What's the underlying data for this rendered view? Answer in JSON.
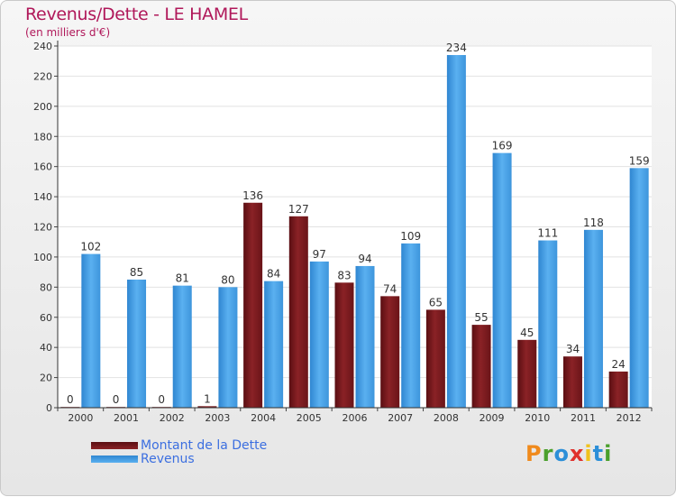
{
  "header": {
    "title": "Revenus/Dette - LE HAMEL",
    "subtitle": "(en milliers d'€)"
  },
  "colors": {
    "dette": "#7a1a1e",
    "revenus": "#4aa3e8",
    "title": "#b0185a",
    "legend_text": "#3c6fe0"
  },
  "chart_data": {
    "type": "bar",
    "title": "Revenus/Dette - LE HAMEL",
    "ylabel": "(en milliers d'€)",
    "xlabel": "",
    "categories": [
      "2000",
      "2001",
      "2002",
      "2003",
      "2004",
      "2005",
      "2006",
      "2007",
      "2008",
      "2009",
      "2010",
      "2011",
      "2012"
    ],
    "series": [
      {
        "name": "Montant de la Dette",
        "values": [
          0,
          0,
          0,
          1,
          136,
          127,
          83,
          74,
          65,
          55,
          45,
          34,
          24
        ]
      },
      {
        "name": "Revenus",
        "values": [
          102,
          85,
          81,
          80,
          84,
          97,
          94,
          109,
          234,
          169,
          111,
          118,
          159
        ]
      }
    ],
    "ylim": [
      0,
      240
    ],
    "yticks": [
      0,
      20,
      40,
      60,
      80,
      100,
      120,
      140,
      160,
      180,
      200,
      220,
      240
    ],
    "grid": true,
    "legend_position": "bottom-left"
  },
  "legend": {
    "items": [
      {
        "label": "Montant de la Dette"
      },
      {
        "label": "Revenus"
      }
    ]
  },
  "logo": {
    "text": "Proxiti"
  }
}
